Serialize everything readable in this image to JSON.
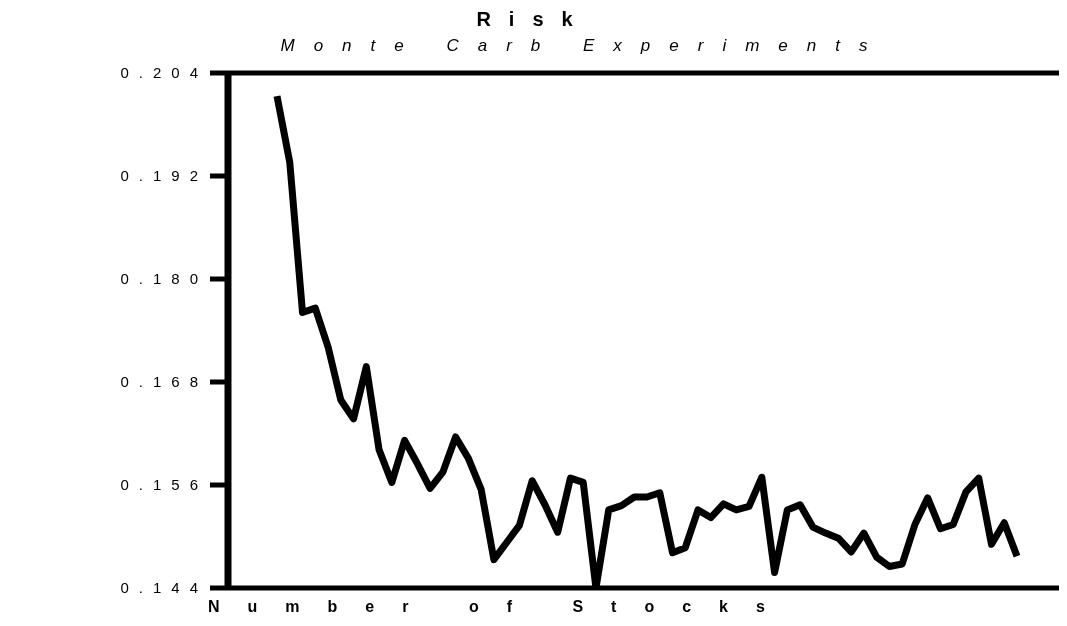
{
  "chart_data": {
    "type": "line",
    "title": "Risk",
    "subtitle": "Monte Carb Experiments",
    "xlabel": "Number of Stocks",
    "categories": [
      null,
      null,
      null,
      null,
      null,
      null,
      null,
      null,
      null,
      null,
      null,
      null,
      null,
      null,
      null,
      null,
      null,
      null,
      null,
      null,
      null,
      null,
      null,
      null,
      null,
      null,
      null,
      null,
      null,
      null,
      null,
      null,
      null,
      null,
      null,
      null,
      null,
      null,
      null,
      null,
      null,
      null,
      null,
      null,
      null,
      null,
      null,
      null,
      null,
      null,
      null,
      null,
      null,
      null,
      null,
      null,
      null,
      null,
      null
    ],
    "series": [
      {
        "color": "#000000",
        "values": [
          0.2013,
          0.1936,
          0.1761,
          0.1766,
          0.1721,
          0.1659,
          0.1637,
          0.1698,
          0.1601,
          0.1563,
          0.1612,
          0.1585,
          0.1556,
          0.1575,
          0.1616,
          0.1591,
          0.1555,
          0.1473,
          0.1493,
          0.1513,
          0.1565,
          0.1537,
          0.1505,
          0.1568,
          0.1563,
          0.144,
          0.1531,
          0.1536,
          0.1546,
          0.1546,
          0.1551,
          0.1481,
          0.1487,
          0.1531,
          0.1522,
          0.1538,
          0.1531,
          0.1535,
          0.1569,
          0.1458,
          0.1531,
          0.1537,
          0.1511,
          0.1504,
          0.1498,
          0.1482,
          0.1504,
          0.1476,
          0.1465,
          0.1468,
          0.1514,
          0.1545,
          0.1509,
          0.1514,
          0.1552,
          0.1568,
          0.1491,
          0.1516,
          0.1477
        ]
      }
    ],
    "ylim": [
      0.144,
      0.204
    ],
    "yticks": [
      0.144,
      0.156,
      0.168,
      {
        "value": 0.18,
        "label": "0.180"
      },
      0.192,
      0.204
    ],
    "grid": false,
    "legend": false,
    "marker": "none",
    "line_style": "solid",
    "tick_labels": "y"
  }
}
